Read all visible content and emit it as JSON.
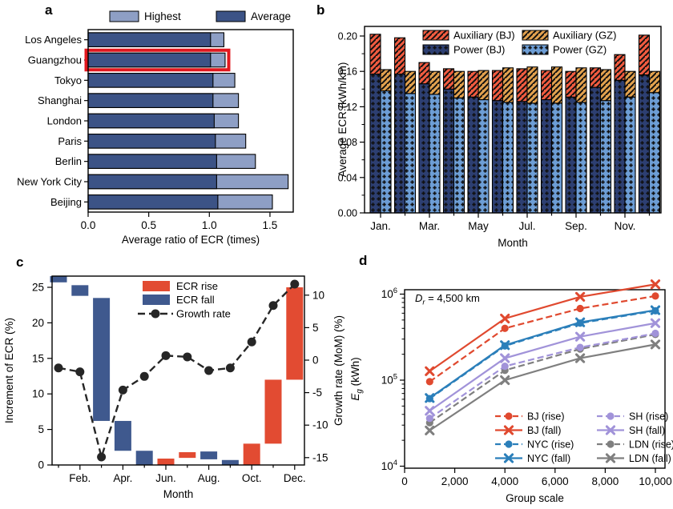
{
  "figure": {
    "background": "#ffffff",
    "panels": [
      {
        "letter": "a"
      },
      {
        "letter": "b"
      },
      {
        "letter": "c"
      },
      {
        "letter": "d"
      }
    ]
  },
  "chart_data": [
    {
      "panel": "a",
      "type": "bar",
      "orientation": "horizontal",
      "xlabel": "Average ratio of ECR (times)",
      "xlim": [
        0,
        1.69
      ],
      "xticks": [
        0.0,
        0.5,
        1.0,
        1.5
      ],
      "categories": [
        "Los Angeles",
        "Guangzhou",
        "Tokyo",
        "Shanghai",
        "London",
        "Paris",
        "Berlin",
        "New York City",
        "Beijing"
      ],
      "series": [
        {
          "name": "Average",
          "color": "#3c5386",
          "values": [
            1.01,
            1.01,
            1.03,
            1.03,
            1.04,
            1.05,
            1.06,
            1.06,
            1.07
          ]
        },
        {
          "name": "Highest",
          "color": "#8e9fc5",
          "values": [
            1.12,
            1.13,
            1.21,
            1.24,
            1.24,
            1.3,
            1.38,
            1.65,
            1.52
          ]
        }
      ],
      "legend": [
        "Highest",
        "Average"
      ],
      "highlight": {
        "category": "Guangzhou",
        "box_color": "#e1171e"
      }
    },
    {
      "panel": "b",
      "type": "bar",
      "subtype": "grouped-stacked",
      "xlabel": "Month",
      "ylabel": "Average ECR (kWh/km)",
      "ylim": [
        0,
        0.211
      ],
      "yticks": [
        0.0,
        0.04,
        0.08,
        0.12,
        0.16,
        0.2
      ],
      "categories": [
        "Jan.",
        "Feb.",
        "Mar.",
        "Apr.",
        "May",
        "Jun.",
        "Jul.",
        "Aug.",
        "Sep.",
        "Oct.",
        "Nov.",
        "Dec."
      ],
      "xticks_shown": [
        "Jan.",
        "Mar.",
        "May",
        "Jul.",
        "Sep.",
        "Nov."
      ],
      "groups": [
        "BJ",
        "GZ"
      ],
      "series": [
        {
          "name": "Power (BJ)",
          "group": "BJ",
          "color": "#2d3f72",
          "pattern": "dots",
          "values": [
            0.157,
            0.157,
            0.146,
            0.14,
            0.131,
            0.127,
            0.126,
            0.128,
            0.131,
            0.142,
            0.15,
            0.156
          ]
        },
        {
          "name": "Auxiliary (BJ)",
          "group": "BJ",
          "color": "#f15b40",
          "pattern": "hatch",
          "values": [
            0.045,
            0.041,
            0.024,
            0.023,
            0.029,
            0.034,
            0.037,
            0.033,
            0.029,
            0.022,
            0.029,
            0.045
          ]
        },
        {
          "name": "Power (GZ)",
          "group": "GZ",
          "color": "#6d9ed6",
          "pattern": "dots",
          "values": [
            0.138,
            0.135,
            0.134,
            0.13,
            0.128,
            0.125,
            0.124,
            0.124,
            0.125,
            0.127,
            0.131,
            0.136
          ]
        },
        {
          "name": "Auxiliary (GZ)",
          "group": "GZ",
          "color": "#e2a14e",
          "pattern": "hatch",
          "values": [
            0.024,
            0.025,
            0.026,
            0.03,
            0.033,
            0.039,
            0.041,
            0.041,
            0.039,
            0.035,
            0.029,
            0.024
          ]
        }
      ],
      "legend": [
        [
          "Auxiliary (BJ)",
          "Auxiliary (GZ)"
        ],
        [
          "Power (BJ)",
          "Power (GZ)"
        ]
      ]
    },
    {
      "panel": "c",
      "type": "waterfall+line",
      "xlabel": "Month",
      "ylabel_left": "Increment of ECR (%)",
      "ylabel_right": "Growth rate (MoM) (%)",
      "ylim_left": [
        0,
        26.6
      ],
      "yticks_left": [
        0,
        5,
        10,
        15,
        20,
        25
      ],
      "ylim_right": [
        -16.3,
        13.0
      ],
      "yticks_right": [
        10,
        5,
        0,
        -5,
        -10,
        -15
      ],
      "categories": [
        "Jan.",
        "Feb.",
        "Mar.",
        "Apr.",
        "May",
        "Jun.",
        "Jul.",
        "Aug.",
        "Sep.",
        "Oct.",
        "Nov.",
        "Dec."
      ],
      "xticks_shown": [
        "Feb.",
        "Apr.",
        "Jun.",
        "Aug.",
        "Oct.",
        "Dec."
      ],
      "bars": [
        {
          "month": "Jan.",
          "from": 25.7,
          "to": 26.6,
          "kind": "fall"
        },
        {
          "month": "Feb.",
          "from": 23.8,
          "to": 25.3,
          "kind": "fall"
        },
        {
          "month": "Mar.",
          "from": 6.2,
          "to": 23.5,
          "kind": "fall"
        },
        {
          "month": "Apr.",
          "from": 2.0,
          "to": 6.2,
          "kind": "fall"
        },
        {
          "month": "May",
          "from": 0.0,
          "to": 2.0,
          "kind": "fall"
        },
        {
          "month": "Jun.",
          "from": 0.0,
          "to": 0.9,
          "kind": "rise"
        },
        {
          "month": "Jul.",
          "from": 1.0,
          "to": 1.8,
          "kind": "rise"
        },
        {
          "month": "Aug.",
          "from": 0.8,
          "to": 1.9,
          "kind": "fall"
        },
        {
          "month": "Sep.",
          "from": 0.0,
          "to": 0.7,
          "kind": "fall"
        },
        {
          "month": "Oct.",
          "from": 0.0,
          "to": 3.0,
          "kind": "rise"
        },
        {
          "month": "Nov.",
          "from": 3.0,
          "to": 12.0,
          "kind": "rise"
        },
        {
          "month": "Dec.",
          "from": 12.0,
          "to": 25.0,
          "kind": "rise"
        }
      ],
      "growth_rate_mom_pct": [
        -1.2,
        -1.8,
        -14.9,
        -4.6,
        -2.5,
        0.7,
        0.5,
        -1.6,
        -1.2,
        2.8,
        8.4,
        11.7
      ],
      "colors": {
        "rise": "#e24b32",
        "fall": "#3f598e",
        "growth_line": "#262626"
      },
      "legend": [
        "ECR rise",
        "ECR fall",
        "Growth rate"
      ]
    },
    {
      "panel": "d",
      "type": "line",
      "yscale": "log",
      "xlabel": "Group scale",
      "ylabel": {
        "pre": "E",
        "sub": "g",
        "post": " (kWh)"
      },
      "annotation": {
        "pre": "D",
        "sub": "r",
        "post": " = 4,500 km"
      },
      "xlim": [
        0,
        10500
      ],
      "xticks": [
        {
          "v": 0,
          "label": "0"
        },
        {
          "v": 2000,
          "label": "2,000"
        },
        {
          "v": 4000,
          "label": "4,000"
        },
        {
          "v": 6000,
          "label": "6,000"
        },
        {
          "v": 8000,
          "label": "8,000"
        },
        {
          "v": 10000,
          "label": "10,000"
        }
      ],
      "yticks_log_exponents": [
        4,
        5,
        6
      ],
      "x": [
        1000,
        4000,
        7000,
        10000
      ],
      "series": [
        {
          "name": "BJ (rise)",
          "color": "#e0492f",
          "dash": true,
          "marker": "circle",
          "values": [
            96000,
            400000,
            680000,
            950000
          ]
        },
        {
          "name": "BJ (fall)",
          "color": "#e0492f",
          "dash": false,
          "marker": "x",
          "values": [
            127000,
            520000,
            930000,
            1300000
          ]
        },
        {
          "name": "NYC (rise)",
          "color": "#2b7fba",
          "dash": true,
          "marker": "circle",
          "values": [
            61000,
            250000,
            460000,
            640000
          ]
        },
        {
          "name": "NYC (fall)",
          "color": "#2b7fba",
          "dash": false,
          "marker": "x",
          "values": [
            62000,
            255000,
            470000,
            650000
          ]
        },
        {
          "name": "SH (rise)",
          "color": "#a193d9",
          "dash": true,
          "marker": "circle",
          "values": [
            36000,
            145000,
            240000,
            350000
          ]
        },
        {
          "name": "SH (fall)",
          "color": "#a193d9",
          "dash": false,
          "marker": "x",
          "values": [
            44000,
            180000,
            320000,
            460000
          ]
        },
        {
          "name": "LDN (rise)",
          "color": "#7f7f7f",
          "dash": true,
          "marker": "circle",
          "values": [
            32000,
            130000,
            230000,
            340000
          ]
        },
        {
          "name": "LDN (fall)",
          "color": "#7f7f7f",
          "dash": false,
          "marker": "x",
          "values": [
            26000,
            100000,
            180000,
            260000
          ]
        }
      ],
      "legend": [
        [
          "BJ (rise)",
          "BJ (fall)",
          "NYC (rise)",
          "NYC (fall)"
        ],
        [
          "SH (rise)",
          "SH (fall)",
          "LDN (rise)",
          "LDN (fall)"
        ]
      ]
    }
  ]
}
